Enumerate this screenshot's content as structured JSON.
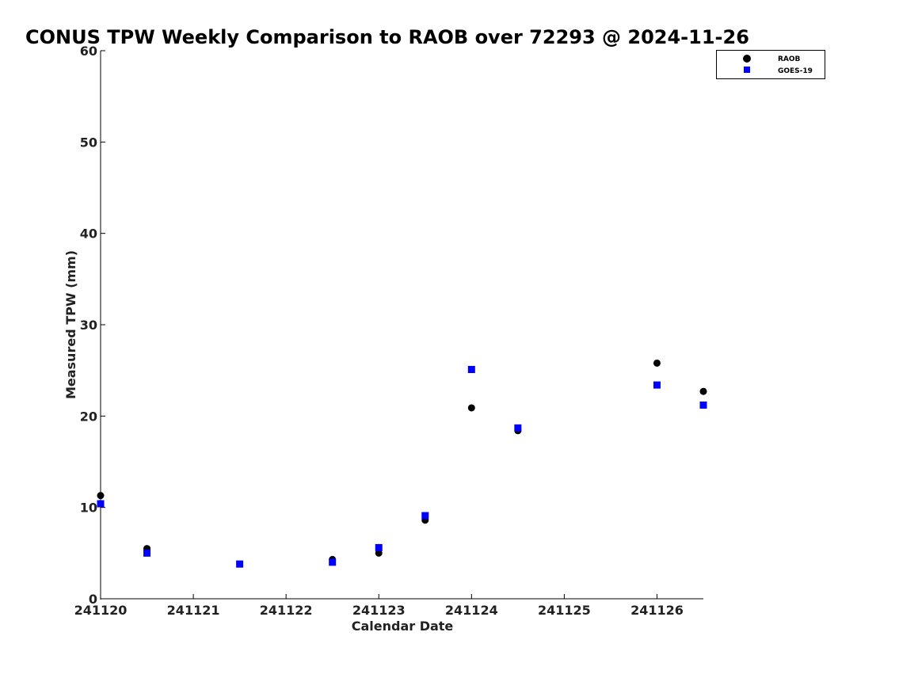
{
  "chart_data": {
    "type": "scatter",
    "title": "CONUS TPW Weekly Comparison to RAOB over 72293 @ 2024-11-26",
    "xlabel": "Calendar Date",
    "ylabel": "Measured TPW (mm)",
    "xlim": [
      241120,
      241126.5
    ],
    "ylim": [
      0,
      60
    ],
    "x_ticks": [
      241120,
      241121,
      241122,
      241123,
      241124,
      241125,
      241126
    ],
    "x_tick_labels": [
      "241120",
      "241121",
      "241122",
      "241123",
      "241124",
      "241125",
      "241126"
    ],
    "y_ticks": [
      0,
      10,
      20,
      30,
      40,
      50,
      60
    ],
    "grid": false,
    "legend_position": "top-right",
    "series": [
      {
        "name": "RAOB",
        "marker": "circle",
        "color": "#000000",
        "points": [
          {
            "x": 241120.0,
            "y": 11.3
          },
          {
            "x": 241120.5,
            "y": 5.5
          },
          {
            "x": 241122.5,
            "y": 4.3
          },
          {
            "x": 241123.0,
            "y": 5.0
          },
          {
            "x": 241123.5,
            "y": 8.6
          },
          {
            "x": 241124.0,
            "y": 20.9
          },
          {
            "x": 241124.5,
            "y": 18.4
          },
          {
            "x": 241126.0,
            "y": 25.8
          },
          {
            "x": 241126.5,
            "y": 22.7
          }
        ]
      },
      {
        "name": "GOES-19",
        "marker": "square",
        "color": "#0000ff",
        "points": [
          {
            "x": 241120.0,
            "y": 10.4
          },
          {
            "x": 241120.5,
            "y": 5.0
          },
          {
            "x": 241121.5,
            "y": 3.8
          },
          {
            "x": 241122.5,
            "y": 4.0
          },
          {
            "x": 241123.0,
            "y": 5.6
          },
          {
            "x": 241123.5,
            "y": 9.1
          },
          {
            "x": 241124.0,
            "y": 25.1
          },
          {
            "x": 241124.5,
            "y": 18.7
          },
          {
            "x": 241126.0,
            "y": 23.4
          },
          {
            "x": 241126.5,
            "y": 21.2
          }
        ]
      }
    ]
  }
}
